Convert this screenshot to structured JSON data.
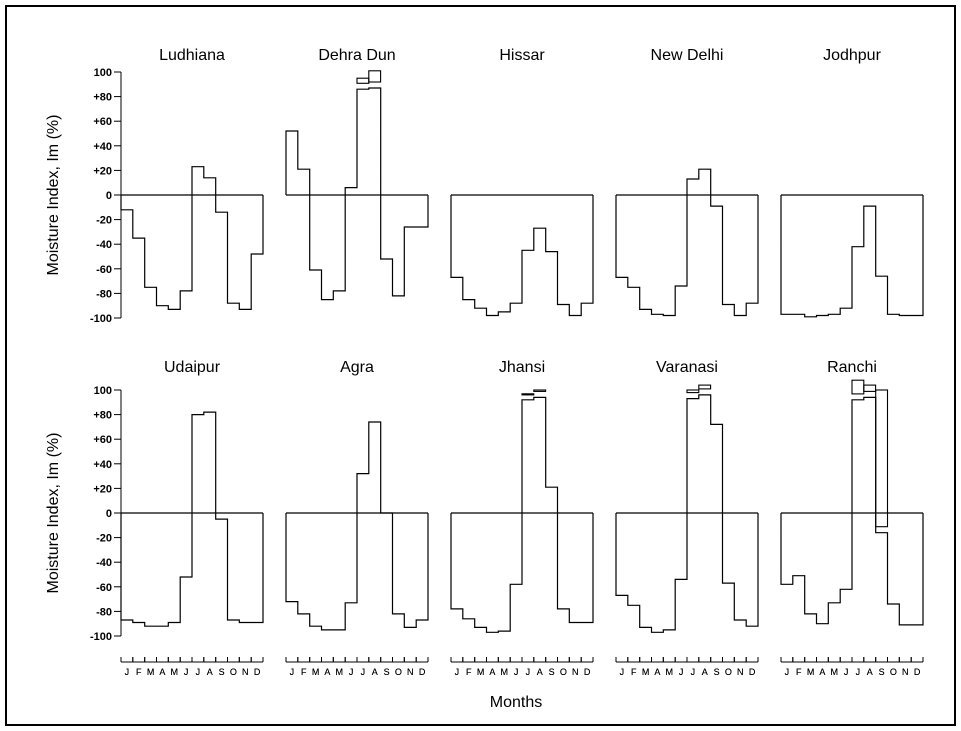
{
  "chart_data": {
    "type": "step",
    "xlabel": "Months",
    "ylabel": "Moisture Index, Im (%)",
    "ylim": [
      -100,
      100
    ],
    "yticks": [
      {
        "value": 100,
        "label": "100"
      },
      {
        "value": 80,
        "label": "+80"
      },
      {
        "value": 60,
        "label": "+60"
      },
      {
        "value": 40,
        "label": "+40"
      },
      {
        "value": 20,
        "label": "+20"
      },
      {
        "value": 0,
        "label": "0"
      },
      {
        "value": -20,
        "label": "-20"
      },
      {
        "value": -40,
        "label": "-40"
      },
      {
        "value": -60,
        "label": "-60"
      },
      {
        "value": -80,
        "label": "-80"
      },
      {
        "value": -100,
        "label": "-100"
      }
    ],
    "month_labels": [
      "J",
      "F",
      "M",
      "A",
      "M",
      "J",
      "J",
      "A",
      "S",
      "O",
      "N",
      "D"
    ],
    "panels": [
      {
        "title": "Ludhiana",
        "values": [
          -12,
          -35,
          -75,
          -90,
          -93,
          -78,
          23,
          14,
          -14,
          -88,
          -93,
          -48
        ],
        "over": []
      },
      {
        "title": "Dehra Dun",
        "values": [
          52,
          21,
          -61,
          -85,
          -78,
          6,
          86,
          87,
          -52,
          -82,
          -26,
          -26
        ],
        "over": [
          null,
          null,
          null,
          null,
          null,
          null,
          95,
          101,
          null,
          null,
          null,
          null
        ]
      },
      {
        "title": "Hissar",
        "values": [
          -67,
          -85,
          -92,
          -98,
          -95,
          -88,
          -45,
          -27,
          -46,
          -89,
          -98,
          -88
        ],
        "over": []
      },
      {
        "title": "New Delhi",
        "values": [
          -67,
          -75,
          -93,
          -97,
          -98,
          -74,
          13,
          21,
          -9,
          -89,
          -98,
          -88
        ],
        "over": []
      },
      {
        "title": "Jodhpur",
        "values": [
          -97,
          -97,
          -99,
          -98,
          -97,
          -92,
          -42,
          -9,
          -66,
          -97,
          -98,
          -98
        ],
        "over": []
      },
      {
        "title": "Udaipur",
        "values": [
          -87,
          -89,
          -92,
          -92,
          -89,
          -52,
          80,
          82,
          -5,
          -87,
          -89,
          -89
        ],
        "over": []
      },
      {
        "title": "Agra",
        "values": [
          -72,
          -82,
          -92,
          -95,
          -95,
          -73,
          32,
          74,
          0,
          -82,
          -93,
          -87
        ],
        "over": []
      },
      {
        "title": "Jhansi",
        "values": [
          -78,
          -86,
          -93,
          -97,
          -96,
          -58,
          92,
          94,
          21,
          -78,
          -89,
          -89
        ],
        "over": [
          null,
          null,
          null,
          null,
          null,
          null,
          96,
          100,
          null,
          null,
          null,
          null
        ]
      },
      {
        "title": "Varanasi",
        "values": [
          -67,
          -75,
          -93,
          -97,
          -95,
          -54,
          93,
          96,
          72,
          -57,
          -87,
          -92
        ],
        "over": [
          null,
          null,
          null,
          null,
          null,
          null,
          100,
          104,
          null,
          null,
          null,
          null
        ]
      },
      {
        "title": "Ranchi",
        "values": [
          -58,
          -51,
          -82,
          -90,
          -73,
          -62,
          92,
          94,
          -16,
          -74,
          -91,
          -91
        ],
        "over": [
          null,
          null,
          null,
          null,
          null,
          null,
          108,
          104,
          100,
          null,
          null,
          null
        ]
      }
    ]
  }
}
